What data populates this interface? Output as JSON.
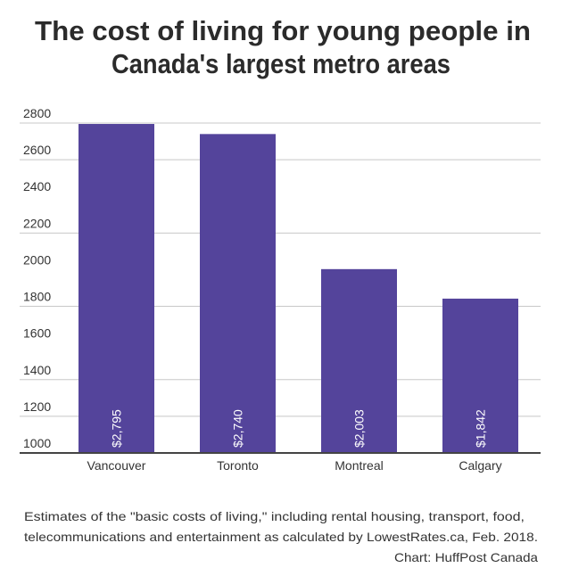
{
  "chart_data": {
    "type": "bar",
    "title": "The cost of living for young people in Canada's largest metro areas",
    "title_lines": [
      "The cost of living for young people in",
      "Canada's largest metro areas"
    ],
    "categories": [
      "Vancouver",
      "Toronto",
      "Montreal",
      "Calgary"
    ],
    "values": [
      2795,
      2740,
      2003,
      1842
    ],
    "data_labels": [
      "$2,795",
      "$2,740",
      "$2,003",
      "$1,842"
    ],
    "xlabel": "",
    "ylabel": "",
    "ylim": [
      1000,
      2800
    ],
    "yticks": [
      1000,
      1200,
      1400,
      1600,
      1800,
      2000,
      2200,
      2400,
      2600,
      2800
    ],
    "gridlines": [
      1200,
      1400,
      1800,
      2200,
      2600,
      2800
    ],
    "grid": true,
    "legend": "none",
    "bar_color": "#54449b",
    "notes": [
      "Estimates of the \"basic costs of living,\" including rental housing, transport, food,",
      "telecommunications and entertainment as calculated by LowestRates.ca, Feb. 2018."
    ],
    "credit": "Chart: HuffPost Canada"
  }
}
